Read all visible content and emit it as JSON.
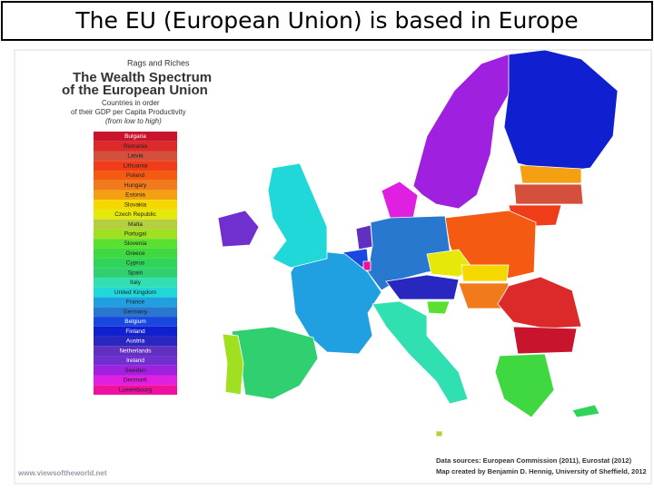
{
  "header": {
    "title": "The EU (European Union) is based in Europe"
  },
  "map": {
    "titles": [
      "Rags and Riches",
      "The Wealth Spectrum",
      "of the European Union",
      "Countries in order",
      "of their GDP per Capita Productivity",
      "(from low to high)"
    ],
    "legend": [
      {
        "name": "Bulgaria",
        "color": "#c8142c"
      },
      {
        "name": "Romania",
        "color": "#dc2a2a"
      },
      {
        "name": "Latvia",
        "color": "#d4503c"
      },
      {
        "name": "Lithuania",
        "color": "#f03c18"
      },
      {
        "name": "Poland",
        "color": "#f55a12"
      },
      {
        "name": "Hungary",
        "color": "#f07a1c"
      },
      {
        "name": "Estonia",
        "color": "#f5a012"
      },
      {
        "name": "Slovakia",
        "color": "#f5d800"
      },
      {
        "name": "Czech Republic",
        "color": "#e6e80a"
      },
      {
        "name": "Malta",
        "color": "#b4d040"
      },
      {
        "name": "Portugal",
        "color": "#a0e020"
      },
      {
        "name": "Slovenia",
        "color": "#5ae030"
      },
      {
        "name": "Greece",
        "color": "#40d840"
      },
      {
        "name": "Cyprus",
        "color": "#30d458"
      },
      {
        "name": "Spain",
        "color": "#30d070"
      },
      {
        "name": "Italy",
        "color": "#30e0b0"
      },
      {
        "name": "United Kingdom",
        "color": "#20d8d8"
      },
      {
        "name": "France",
        "color": "#20a0e0"
      },
      {
        "name": "Germany",
        "color": "#2878d0"
      },
      {
        "name": "Belgium",
        "color": "#1848e0"
      },
      {
        "name": "Finland",
        "color": "#1020d0"
      },
      {
        "name": "Austria",
        "color": "#2828c0"
      },
      {
        "name": "Netherlands",
        "color": "#6030c0"
      },
      {
        "name": "Ireland",
        "color": "#7030d0"
      },
      {
        "name": "Sweden",
        "color": "#a020e0"
      },
      {
        "name": "Denmark",
        "color": "#e020e0"
      },
      {
        "name": "Luxembourg",
        "color": "#f010a0"
      }
    ],
    "credits": [
      "Data sources: European Commission (2011), Eurostat (2012)",
      "Map created by Benjamin D. Hennig, University of Sheffield, 2012"
    ],
    "watermark": "www.viewsoftheworld.net"
  }
}
